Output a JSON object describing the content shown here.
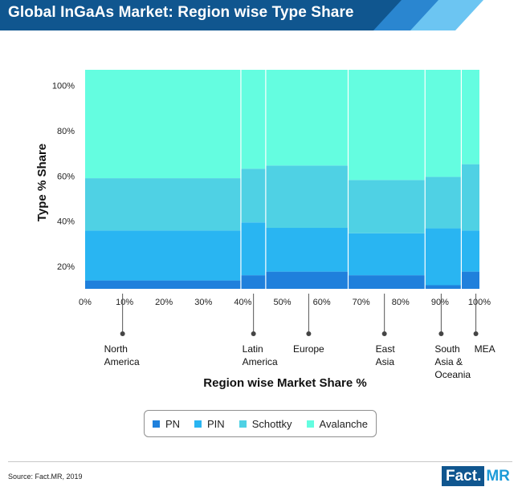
{
  "header": {
    "title": "Global InGaAs Market: Region wise Type Share"
  },
  "colors": {
    "PN": "#1f80dc",
    "PIN": "#29b5f2",
    "Schottky": "#4fd1e4",
    "Avalanche": "#64fde0"
  },
  "chart_data": {
    "type": "marimekko",
    "title": "Global InGaAs Market: Region wise Type Share",
    "xlabel": "Region wise Market Share %",
    "ylabel": "Type % Share",
    "x_ticks": [
      "0%",
      "10%",
      "20%",
      "30%",
      "40%",
      "50%",
      "60%",
      "70%",
      "80%",
      "90%",
      "100%"
    ],
    "y_ticks": [
      "20%",
      "40%",
      "60%",
      "80%",
      "100%"
    ],
    "xlim": [
      0,
      100
    ],
    "ylim": [
      10,
      107
    ],
    "regions": [
      {
        "name": "North America",
        "label_lines": [
          "North",
          "America"
        ],
        "x_start": 0,
        "x_end": 39.5,
        "label_x": 9.5
      },
      {
        "name": "Latin America",
        "label_lines": [
          "Latin",
          "America"
        ],
        "x_start": 39.5,
        "x_end": 45.8,
        "label_x": 42.7
      },
      {
        "name": "Europe",
        "label_lines": [
          "Europe"
        ],
        "x_start": 45.8,
        "x_end": 66.7,
        "label_x": 56.7
      },
      {
        "name": "East Asia",
        "label_lines": [
          "East",
          "Asia"
        ],
        "x_start": 66.7,
        "x_end": 86.2,
        "label_x": 75.9
      },
      {
        "name": "South Asia & Oceania",
        "label_lines": [
          "South",
          "Asia &",
          "Oceania"
        ],
        "x_start": 86.2,
        "x_end": 95.4,
        "label_x": 90.3
      },
      {
        "name": "MEA",
        "label_lines": [
          "MEA"
        ],
        "x_start": 95.4,
        "x_end": 100,
        "label_x": 99.1
      }
    ],
    "series": [
      {
        "name": "PN",
        "tops": [
          13.7,
          16.0,
          17.6,
          16.0,
          11.6,
          17.6
        ]
      },
      {
        "name": "PIN",
        "tops": [
          35.8,
          39.4,
          37.0,
          34.6,
          36.8,
          35.8
        ]
      },
      {
        "name": "Schottky",
        "tops": [
          59.0,
          63.2,
          64.6,
          58.2,
          59.6,
          65.2
        ]
      },
      {
        "name": "Avalanche",
        "tops": [
          107,
          107,
          107,
          107,
          107,
          107
        ]
      }
    ]
  },
  "legend": [
    {
      "label": "PN"
    },
    {
      "label": "PIN"
    },
    {
      "label": "Schottky"
    },
    {
      "label": "Avalanche"
    }
  ],
  "footer": {
    "source": "Source: Fact.MR, 2019",
    "logo_left": "Fact.",
    "logo_right": "MR"
  }
}
